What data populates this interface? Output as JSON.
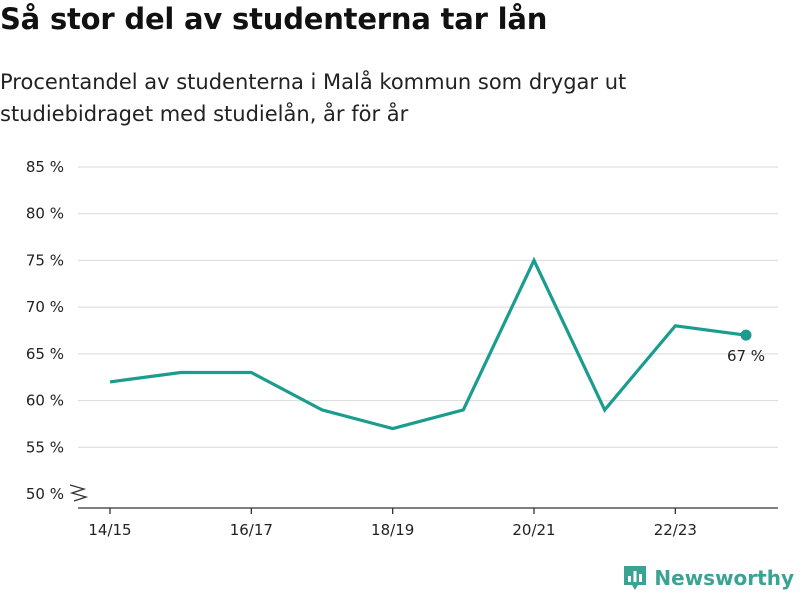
{
  "header": {
    "title": "Så stor del av studenterna tar lån",
    "subtitle": "Procentandel av studenterna i Malå kommun som drygar ut studiebidraget med studielån, år för år"
  },
  "brand": {
    "name": "Newsworthy"
  },
  "colors": {
    "line": "#1a9c8f",
    "grid": "#d9d9d9",
    "axis": "#333333",
    "brand": "#3ba393"
  },
  "chart_data": {
    "type": "line",
    "title": "Så stor del av studenterna tar lån",
    "subtitle": "Procentandel av studenterna i Malå kommun som drygar ut studiebidraget med studielån, år för år",
    "x": [
      "14/15",
      "15/16",
      "16/17",
      "17/18",
      "18/19",
      "19/20",
      "20/21",
      "21/22",
      "22/23",
      "23/24"
    ],
    "x_tick_labels": [
      "14/15",
      "16/17",
      "18/19",
      "20/21",
      "22/23"
    ],
    "series": [
      {
        "values": [
          62,
          63,
          63,
          59,
          57,
          59,
          75,
          59,
          68,
          67
        ]
      }
    ],
    "ylim": [
      50,
      85
    ],
    "y_ticks": [
      50,
      55,
      60,
      65,
      70,
      75,
      80,
      85
    ],
    "y_tick_labels": [
      "50 %",
      "55 %",
      "60 %",
      "65 %",
      "70 %",
      "75 %",
      "80 %",
      "85 %"
    ],
    "y_axis_break": true,
    "end_label": "67 %",
    "grid": true,
    "xlabel": "",
    "ylabel": ""
  }
}
